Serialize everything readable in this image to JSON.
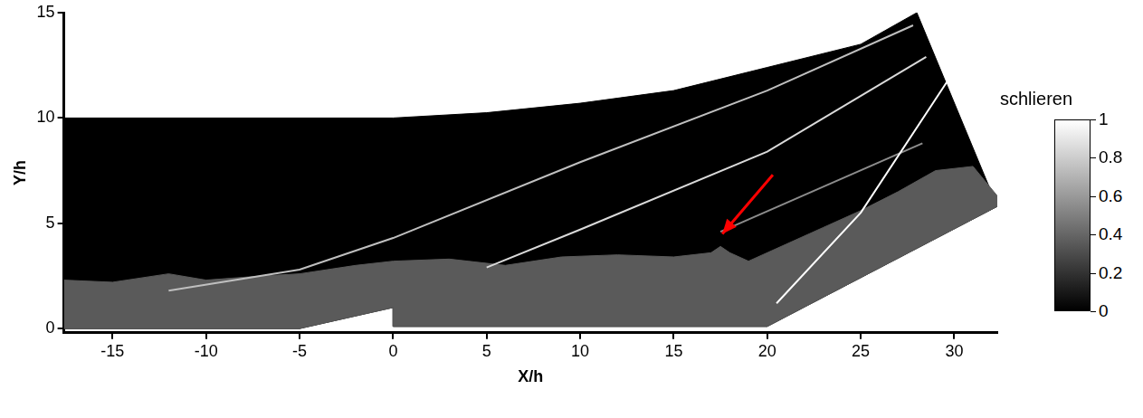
{
  "chart_data": {
    "type": "scatter",
    "x_label": "X/h",
    "y_label": "Y/h",
    "xlim": [
      -17.6,
      32.3
    ],
    "ylim": [
      -0.2,
      15
    ],
    "xticks": [
      -15,
      -10,
      -5,
      0,
      5,
      10,
      15,
      20,
      25,
      30
    ],
    "yticks": [
      0,
      5,
      10,
      15
    ],
    "grid": false,
    "colorbar": {
      "title": "schlieren",
      "range": [
        0,
        1
      ],
      "ticks": [
        0,
        0.2,
        0.4,
        0.6,
        0.8,
        1
      ]
    },
    "series": [
      {
        "type": "area",
        "color": "#000000",
        "x": [
          -17.6,
          -5,
          0,
          0,
          20,
          32.3,
          28,
          25,
          20,
          15,
          10,
          5,
          0,
          -17.6,
          -17.6
        ],
        "values": [
          0,
          0,
          1.0,
          0.1,
          0.1,
          5.8,
          15,
          13.5,
          12.4,
          11.3,
          10.7,
          10.25,
          10,
          10,
          0
        ]
      },
      {
        "type": "area",
        "color": "#5a5a5a",
        "x": [
          -17.6,
          -15,
          -12,
          -10,
          -7,
          -5,
          -2,
          0,
          3,
          6,
          9,
          12,
          15,
          17,
          17.5,
          18,
          19,
          21,
          23,
          25,
          27,
          29,
          31,
          32.3,
          32.3,
          20,
          0,
          0,
          -5,
          -17.6
        ],
        "values": [
          2.3,
          2.2,
          2.6,
          2.3,
          2.5,
          2.6,
          3.0,
          3.2,
          3.3,
          3.0,
          3.4,
          3.5,
          3.4,
          3.6,
          3.9,
          3.6,
          3.2,
          4.0,
          4.8,
          5.6,
          6.5,
          7.5,
          7.7,
          6.3,
          5.8,
          0.1,
          0.1,
          1.0,
          0,
          0
        ]
      },
      {
        "type": "line",
        "color": "#bfbfbf",
        "x": [
          -12,
          -5,
          0,
          10,
          20,
          27.8
        ],
        "values": [
          1.8,
          2.8,
          4.3,
          7.9,
          11.3,
          14.4
        ]
      },
      {
        "type": "line",
        "color": "#d9d9d9",
        "x": [
          5,
          10,
          20,
          28.5
        ],
        "values": [
          2.9,
          4.7,
          8.4,
          12.9
        ]
      },
      {
        "type": "line",
        "color": "#8c8c8c",
        "x": [
          17.5,
          28.3
        ],
        "values": [
          4.6,
          8.8
        ]
      },
      {
        "type": "line",
        "color": "#ffffff",
        "x": [
          20.5,
          25,
          29.6
        ],
        "values": [
          1.2,
          5.5,
          11.7
        ]
      },
      {
        "type": "line",
        "color": "#ff0000",
        "marker": "arrow",
        "x": [
          20.3,
          17.6
        ],
        "values": [
          7.3,
          4.5
        ]
      }
    ]
  }
}
